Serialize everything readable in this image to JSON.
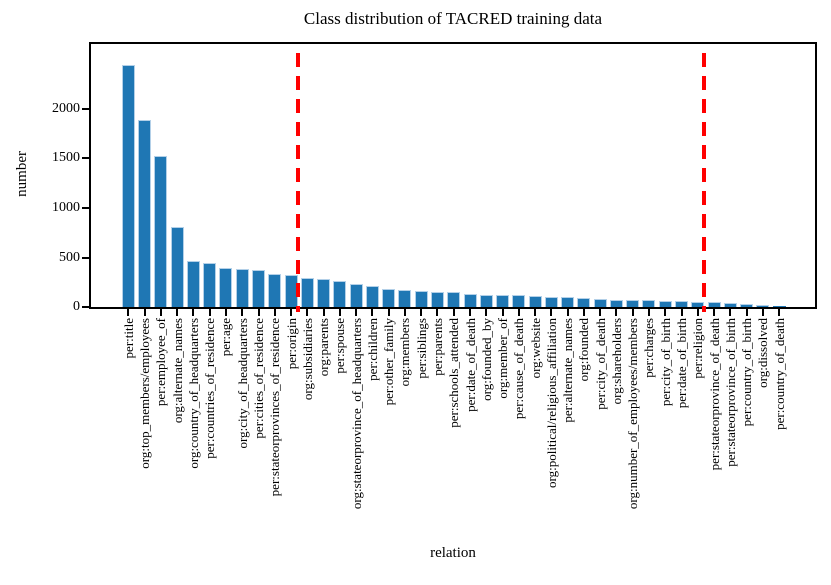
{
  "chart_data": {
    "type": "bar",
    "title": "Class distribution of TACRED training data",
    "xlabel": "relation",
    "ylabel": "number",
    "grid": false,
    "legend": false,
    "ylim": [
      0,
      2655
    ],
    "yticks": [
      0,
      500,
      1000,
      1500,
      2000
    ],
    "bar_color": "#1f77b4",
    "bar_edge_color": "#b3d0e8",
    "categories": [
      "per:title",
      "org:top_members/employees",
      "per:employee_of",
      "org:alternate_names",
      "org:country_of_headquarters",
      "per:countries_of_residence",
      "per:age",
      "org:city_of_headquarters",
      "per:cities_of_residence",
      "per:stateorprovinces_of_residence",
      "per:origin",
      "org:subsidiaries",
      "org:parents",
      "per:spouse",
      "org:stateorprovince_of_headquarters",
      "per:children",
      "per:other_family",
      "org:members",
      "per:siblings",
      "per:parents",
      "per:schools_attended",
      "per:date_of_death",
      "org:founded_by",
      "org:member_of",
      "per:cause_of_death",
      "org:website",
      "org:political/religious_affiliation",
      "per:alternate_names",
      "org:founded",
      "per:city_of_death",
      "org:shareholders",
      "org:number_of_employees/members",
      "per:charges",
      "per:city_of_birth",
      "per:date_of_birth",
      "per:religion",
      "per:stateorprovince_of_death",
      "per:stateorprovince_of_birth",
      "per:country_of_birth",
      "org:dissolved",
      "per:country_of_death"
    ],
    "values": [
      2443,
      1890,
      1524,
      808,
      468,
      445,
      390,
      382,
      374,
      331,
      325,
      296,
      286,
      258,
      229,
      211,
      179,
      170,
      165,
      152,
      149,
      134,
      124,
      122,
      117,
      111,
      105,
      104,
      91,
      81,
      76,
      75,
      72,
      65,
      63,
      53,
      49,
      38,
      28,
      23,
      6
    ],
    "threshold_lines": {
      "x_positions": [
        10.4,
        35.4
      ],
      "color": "#ff0000",
      "style": "dashed"
    }
  }
}
